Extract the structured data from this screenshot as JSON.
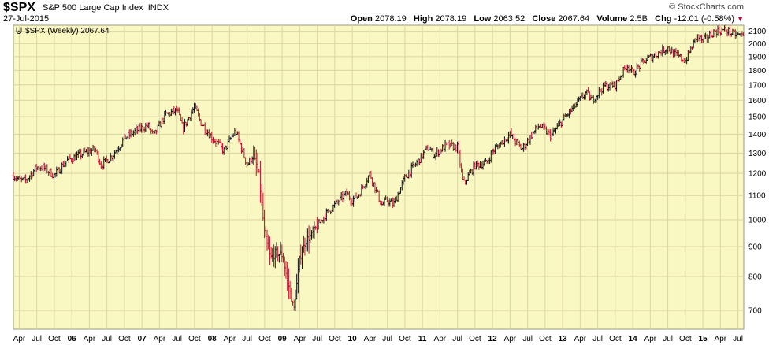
{
  "header": {
    "symbol": "$SPX",
    "name": "S&P 500 Large Cap Index",
    "exchange": "INDX",
    "date": "27-Jul-2015",
    "brand": "© StockCharts.com",
    "open_label": "Open",
    "open": "2078.19",
    "high_label": "High",
    "high": "2078.19",
    "low_label": "Low",
    "low": "2063.52",
    "close_label": "Close",
    "close": "2067.64",
    "volume_label": "Volume",
    "volume": "2.5B",
    "chg_label": "Chg",
    "chg": "-12.01 (-0.58%)",
    "chg_direction_icon": "down-triangle-icon"
  },
  "colors": {
    "plot_bg": "#f9f7c2",
    "up_bar": "#111111",
    "down_bar": "#c4102e",
    "grid": "#d9d6a4",
    "frame": "#9a9a7a"
  },
  "chart_data": {
    "type": "ohlc",
    "title": "",
    "legend": "$SPX (Weekly) 2067.64",
    "y_scale": "log",
    "ylim": [
      650,
      2150
    ],
    "y_ticks": [
      700,
      800,
      900,
      1000,
      1100,
      1200,
      1300,
      1400,
      1500,
      1600,
      1700,
      1800,
      1900,
      2000,
      2100
    ],
    "x_range": [
      "2005-03",
      "2015-08"
    ],
    "x_ticks": [
      "Apr",
      "Jul",
      "Oct",
      "06",
      "Apr",
      "Jul",
      "Oct",
      "07",
      "Apr",
      "Jul",
      "Oct",
      "08",
      "Apr",
      "Jul",
      "Oct",
      "09",
      "Apr",
      "Jul",
      "Oct",
      "10",
      "Apr",
      "Jul",
      "Oct",
      "11",
      "Apr",
      "Jul",
      "Oct",
      "12",
      "Apr",
      "Jul",
      "Oct",
      "13",
      "Apr",
      "Jul",
      "Oct",
      "14",
      "Apr",
      "Jul",
      "Oct",
      "15",
      "Apr",
      "Jul"
    ],
    "x_tick_dates": [
      "2005-04",
      "2005-07",
      "2005-10",
      "2006-01",
      "2006-04",
      "2006-07",
      "2006-10",
      "2007-01",
      "2007-04",
      "2007-07",
      "2007-10",
      "2008-01",
      "2008-04",
      "2008-07",
      "2008-10",
      "2009-01",
      "2009-04",
      "2009-07",
      "2009-10",
      "2010-01",
      "2010-04",
      "2010-07",
      "2010-10",
      "2011-01",
      "2011-04",
      "2011-07",
      "2011-10",
      "2012-01",
      "2012-04",
      "2012-07",
      "2012-10",
      "2013-01",
      "2013-04",
      "2013-07",
      "2013-10",
      "2014-01",
      "2014-04",
      "2014-07",
      "2014-10",
      "2015-01",
      "2015-04",
      "2015-07"
    ],
    "year_ticks": [
      "06",
      "07",
      "08",
      "09",
      "10",
      "11",
      "12",
      "13",
      "14",
      "15"
    ],
    "grid": true,
    "path_dates": [
      "2005-03",
      "2005-04",
      "2005-05",
      "2005-07",
      "2005-08",
      "2005-10",
      "2005-12",
      "2006-03",
      "2006-05",
      "2006-06",
      "2006-08",
      "2006-10",
      "2006-12",
      "2007-02",
      "2007-03",
      "2007-05",
      "2007-07",
      "2007-08",
      "2007-10",
      "2007-11",
      "2008-01",
      "2008-02",
      "2008-03",
      "2008-05",
      "2008-07",
      "2008-08",
      "2008-09",
      "2008-10",
      "2008-11",
      "2008-12",
      "2009-01",
      "2009-03",
      "2009-04",
      "2009-05",
      "2009-06",
      "2009-08",
      "2009-10",
      "2009-12",
      "2010-01",
      "2010-02",
      "2010-04",
      "2010-06",
      "2010-07",
      "2010-08",
      "2010-10",
      "2010-12",
      "2011-02",
      "2011-03",
      "2011-05",
      "2011-07",
      "2011-08",
      "2011-10",
      "2011-12",
      "2012-01",
      "2012-04",
      "2012-06",
      "2012-08",
      "2012-09",
      "2012-11",
      "2013-01",
      "2013-03",
      "2013-05",
      "2013-06",
      "2013-08",
      "2013-10",
      "2013-12",
      "2014-01",
      "2014-03",
      "2014-05",
      "2014-07",
      "2014-08",
      "2014-10",
      "2014-12",
      "2015-01",
      "2015-03",
      "2015-05",
      "2015-06",
      "2015-07"
    ],
    "path_close": [
      1190,
      1170,
      1165,
      1230,
      1230,
      1190,
      1260,
      1300,
      1320,
      1240,
      1290,
      1380,
      1420,
      1450,
      1390,
      1510,
      1540,
      1430,
      1560,
      1470,
      1380,
      1350,
      1310,
      1420,
      1240,
      1290,
      1200,
      940,
      860,
      880,
      870,
      700,
      860,
      920,
      940,
      1010,
      1060,
      1110,
      1080,
      1100,
      1200,
      1060,
      1080,
      1060,
      1180,
      1250,
      1330,
      1290,
      1340,
      1330,
      1150,
      1240,
      1250,
      1310,
      1400,
      1320,
      1410,
      1450,
      1390,
      1480,
      1560,
      1650,
      1600,
      1690,
      1700,
      1840,
      1780,
      1870,
      1920,
      1970,
      1920,
      1870,
      2060,
      2020,
      2100,
      2110,
      2080,
      2068
    ]
  }
}
